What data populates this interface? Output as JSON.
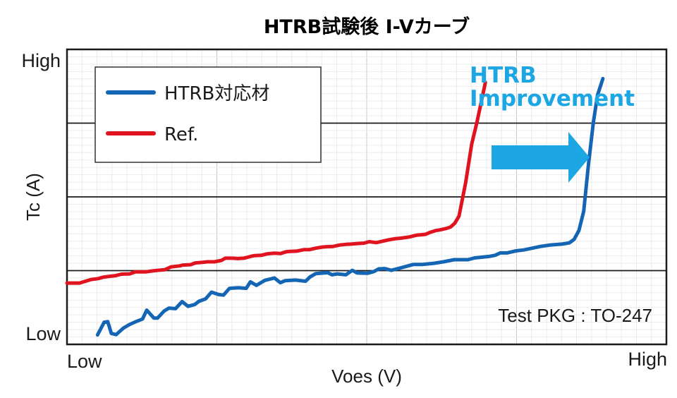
{
  "chart_data": {
    "type": "line",
    "title": "HTRB試験後 I-Vカーブ",
    "xlabel": "Voes (V)",
    "ylabel": "Tc (A)",
    "x_tick_labels": [
      "Low",
      "High"
    ],
    "y_tick_labels": [
      "Low",
      "High"
    ],
    "xlim": [
      0,
      100
    ],
    "ylim": [
      0,
      100
    ],
    "grid": "horizontal major lines with fine minor gridlines",
    "legend_position": "top-left",
    "annotation": {
      "lines": [
        "HTRB",
        "Improvement"
      ],
      "color": "#1ca7e4"
    },
    "note": "Test PKG : TO-247",
    "series": [
      {
        "name": "HTRB対応材",
        "color": "#1565b5",
        "x": [
          5.1,
          6.2,
          6.8,
          7.4,
          8.2,
          9.4,
          10.4,
          11.6,
          12.6,
          13.3,
          14.5,
          15.1,
          16.2,
          17.0,
          18.1,
          19.2,
          20.2,
          21.3,
          22.0,
          23.1,
          24.1,
          25.3,
          26.1,
          27.1,
          28.6,
          29.9,
          30.6,
          31.6,
          33.0,
          34.6,
          35.6,
          36.4,
          38.1,
          39.8,
          40.5,
          41.5,
          43.5,
          44.2,
          45.1,
          46.5,
          47.6,
          48.4,
          50.1,
          51.2,
          52.0,
          53.0,
          54.1,
          55.8,
          57.8,
          59.3,
          61.2,
          62.8,
          64.6,
          66.9,
          68.0,
          70.4,
          71.4,
          72.3,
          73.4,
          74.9,
          76.2,
          77.6,
          79.0,
          80.7,
          82.6,
          83.8,
          84.6,
          85.4,
          86.2,
          87.0,
          87.8,
          88.5,
          89.4
        ],
        "y": [
          3.2,
          7.5,
          7.7,
          3.7,
          3.3,
          5.5,
          6.7,
          7.8,
          8.6,
          11.6,
          8.9,
          8.9,
          11.3,
          12.3,
          12.1,
          14.5,
          12.9,
          13.5,
          14.6,
          15.4,
          17.7,
          16.9,
          16.7,
          19.0,
          19.2,
          19.0,
          21.2,
          20.0,
          21.7,
          22.5,
          20.9,
          21.6,
          21.8,
          21.4,
          22.8,
          24.0,
          24.3,
          23.6,
          23.9,
          23.6,
          25.1,
          24.2,
          24.1,
          24.7,
          25.6,
          25.7,
          25.1,
          26.0,
          27.1,
          27.1,
          27.5,
          28.0,
          28.7,
          28.7,
          29.3,
          29.8,
          30.2,
          31.0,
          31.0,
          31.7,
          32.0,
          32.6,
          33.2,
          33.7,
          34.0,
          34.4,
          35.6,
          38.6,
          45.1,
          61.1,
          75.1,
          84.5,
          90.1
        ]
      },
      {
        "name": "Ref.",
        "color": "#e0141e",
        "x": [
          0.0,
          1.4,
          2.1,
          3.1,
          4.1,
          5.2,
          6.1,
          7.3,
          8.1,
          9.1,
          10.5,
          11.4,
          12.2,
          13.2,
          14.3,
          15.6,
          16.3,
          17.4,
          18.8,
          19.3,
          20.6,
          21.4,
          22.6,
          23.4,
          24.6,
          25.8,
          26.4,
          27.6,
          28.5,
          29.5,
          30.8,
          31.3,
          32.4,
          33.4,
          34.6,
          35.6,
          36.6,
          37.2,
          38.3,
          39.5,
          40.4,
          41.5,
          42.6,
          43.3,
          44.4,
          45.6,
          46.5,
          47.4,
          48.6,
          49.5,
          50.4,
          51.6,
          52.5,
          53.6,
          54.6,
          55.7,
          57.1,
          58.3,
          59.8,
          60.6,
          61.5,
          62.2,
          63.3,
          64.0,
          64.7,
          65.4,
          66.5,
          67.5,
          68.4,
          69.1,
          69.8
        ],
        "y": [
          20.8,
          20.8,
          20.8,
          21.4,
          22.0,
          22.3,
          22.8,
          23.1,
          23.3,
          23.8,
          23.9,
          24.6,
          24.6,
          24.6,
          24.9,
          25.2,
          25.3,
          26.3,
          26.6,
          26.9,
          27.0,
          27.6,
          27.8,
          28.0,
          28.0,
          28.5,
          29.2,
          29.2,
          29.1,
          29.2,
          29.9,
          30.1,
          30.2,
          30.7,
          30.9,
          30.8,
          31.4,
          31.5,
          31.6,
          32.1,
          32.1,
          32.6,
          33.0,
          33.1,
          33.2,
          33.7,
          33.9,
          34.0,
          34.2,
          34.3,
          34.8,
          34.5,
          34.9,
          35.4,
          35.8,
          36.0,
          36.4,
          37.0,
          37.3,
          38.0,
          38.6,
          38.8,
          39.3,
          39.8,
          41.1,
          43.5,
          54.8,
          67.8,
          75.4,
          82.0,
          88.8
        ]
      }
    ]
  }
}
